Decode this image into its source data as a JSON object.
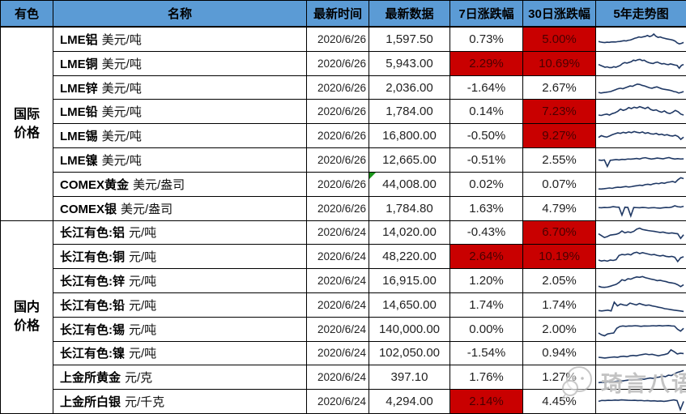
{
  "header": {
    "group": "有色",
    "columns": [
      "名称",
      "最新时间",
      "最新数据",
      "7日涨跌幅",
      "30日涨跌幅",
      "5年走势图"
    ]
  },
  "colors": {
    "header_bg": "#5B9BD5",
    "highlight_bg": "#C90000",
    "highlight_text": "#4a0000",
    "sparkline": "#1F3864",
    "border": "#000000",
    "error_marker_green": "#1a961a",
    "watermark_gray": "#b9b9b9"
  },
  "watermark": {
    "text": "琦言八语",
    "icon": "wechat-face-icon"
  },
  "groups": [
    {
      "label": "国际价格",
      "rows": [
        {
          "name": "LME铝",
          "unit": "美元/吨",
          "date": "2020/6/26",
          "value": "1,597.50",
          "pct7": "0.73%",
          "pct7_hl": false,
          "pct30": "5.00%",
          "pct30_hl": true,
          "error": false,
          "spark": [
            38,
            35,
            33,
            32,
            34,
            33,
            35,
            36,
            35,
            37,
            38,
            40,
            42,
            41,
            44,
            46,
            50,
            55,
            58,
            62,
            60,
            63,
            65,
            70,
            64,
            68,
            78,
            66,
            60,
            62,
            58,
            55,
            52,
            50,
            48,
            45,
            40,
            30,
            25,
            28,
            33
          ]
        },
        {
          "name": "LME铜",
          "unit": "美元/吨",
          "date": "2020/6/26",
          "value": "5,943.00",
          "pct7": "2.29%",
          "pct7_hl": true,
          "pct30": "10.69%",
          "pct30_hl": true,
          "error": false,
          "spark": [
            45,
            40,
            35,
            30,
            32,
            28,
            28,
            33,
            30,
            35,
            40,
            50,
            55,
            52,
            56,
            60,
            68,
            65,
            70,
            72,
            66,
            68,
            60,
            55,
            52,
            50,
            55,
            58,
            52,
            48,
            50,
            46,
            44,
            48,
            45,
            42,
            40,
            25,
            40,
            45
          ]
        },
        {
          "name": "LME锌",
          "unit": "美元/吨",
          "date": "2020/6/26",
          "value": "2,036.00",
          "pct7": "-1.64%",
          "pct7_hl": false,
          "pct30": "2.67%",
          "pct30_hl": false,
          "error": false,
          "spark": [
            25,
            22,
            24,
            26,
            28,
            30,
            35,
            40,
            45,
            48,
            45,
            50,
            55,
            60,
            58,
            65,
            70,
            68,
            63,
            60,
            55,
            50,
            48,
            52,
            55,
            50,
            45,
            42,
            40,
            38,
            35,
            30,
            28,
            22,
            25,
            30
          ]
        },
        {
          "name": "LME铅",
          "unit": "美元/吨",
          "date": "2020/6/26",
          "value": "1,784.00",
          "pct7": "0.14%",
          "pct7_hl": false,
          "pct30": "7.23%",
          "pct30_hl": true,
          "error": false,
          "spark": [
            30,
            28,
            32,
            35,
            30,
            38,
            42,
            50,
            62,
            55,
            60,
            70,
            65,
            72,
            68,
            75,
            70,
            65,
            72,
            60,
            55,
            58,
            50,
            45,
            52,
            42,
            38,
            45,
            55,
            48,
            35,
            30
          ]
        },
        {
          "name": "LME锡",
          "unit": "美元/吨",
          "date": "2020/6/26",
          "value": "16,800.00",
          "pct7": "-0.50%",
          "pct7_hl": false,
          "pct30": "9.27%",
          "pct30_hl": true,
          "error": false,
          "spark": [
            40,
            50,
            45,
            42,
            48,
            55,
            60,
            65,
            62,
            68,
            64,
            70,
            66,
            72,
            68,
            65,
            70,
            62,
            66,
            60,
            58,
            62,
            55,
            58,
            52,
            55,
            50,
            48,
            52,
            45,
            30,
            42
          ]
        },
        {
          "name": "LME镍",
          "unit": "美元/吨",
          "date": "2020/6/26",
          "value": "12,665.00",
          "pct7": "-0.51%",
          "pct7_hl": false,
          "pct30": "2.55%",
          "pct30_hl": false,
          "error": false,
          "spark": [
            50,
            48,
            50,
            15,
            48,
            50,
            52,
            50,
            53,
            52,
            55,
            54,
            56,
            58,
            55,
            60,
            62,
            58,
            55,
            57,
            60,
            58,
            56,
            60,
            63,
            58,
            55,
            57,
            55,
            56
          ]
        },
        {
          "name": "COMEX黄金",
          "unit": "美元/盎司",
          "date": "2020/6/26",
          "value": "44,008.00",
          "pct7": "0.02%",
          "pct7_hl": false,
          "pct30": "0.07%",
          "pct30_hl": false,
          "error": true,
          "spark": [
            25,
            24,
            26,
            28,
            30,
            28,
            32,
            34,
            33,
            36,
            38,
            35,
            37,
            40,
            42,
            45,
            43,
            48,
            50,
            47,
            52,
            55,
            53,
            58,
            55,
            60,
            62,
            65,
            60,
            75,
            85,
            80
          ]
        },
        {
          "name": "COMEX银",
          "unit": "美元/盎司",
          "date": "2020/6/26",
          "value": "1,784.80",
          "pct7": "1.63%",
          "pct7_hl": false,
          "pct30": "4.79%",
          "pct30_hl": false,
          "error": false,
          "spark": [
            55,
            54,
            56,
            55,
            57,
            60,
            58,
            57,
            15,
            57,
            56,
            10,
            56,
            55,
            54,
            56,
            55,
            53,
            54,
            55,
            53,
            52,
            54,
            56,
            55,
            58,
            65,
            60,
            58,
            62
          ]
        }
      ]
    },
    {
      "label": "国内价格",
      "rows": [
        {
          "name": "长江有色:铝",
          "unit": "元/吨",
          "date": "2020/6/24",
          "value": "14,020.00",
          "pct7": "-0.43%",
          "pct7_hl": false,
          "pct30": "6.70%",
          "pct30_hl": true,
          "error": false,
          "spark": [
            45,
            35,
            25,
            30,
            38,
            40,
            42,
            48,
            60,
            50,
            55,
            52,
            58,
            70,
            75,
            68,
            65,
            62,
            60,
            58,
            55,
            52,
            54,
            50,
            48,
            50,
            47,
            45,
            20,
            40
          ]
        },
        {
          "name": "长江有色:铜",
          "unit": "元/吨",
          "date": "2020/6/24",
          "value": "48,220.00",
          "pct7": "2.64%",
          "pct7_hl": true,
          "pct30": "10.19%",
          "pct30_hl": true,
          "error": false,
          "spark": [
            30,
            25,
            28,
            24,
            30,
            28,
            32,
            55,
            60,
            58,
            62,
            58,
            68,
            72,
            65,
            70,
            66,
            62,
            58,
            60,
            55,
            52,
            55,
            50,
            48,
            50,
            45,
            22,
            42,
            48
          ]
        },
        {
          "name": "长江有色:锌",
          "unit": "元/吨",
          "date": "2020/6/24",
          "value": "16,915.00",
          "pct7": "1.20%",
          "pct7_hl": false,
          "pct30": "2.05%",
          "pct30_hl": false,
          "error": false,
          "spark": [
            20,
            15,
            14,
            16,
            20,
            25,
            30,
            40,
            55,
            50,
            60,
            58,
            65,
            70,
            68,
            72,
            66,
            62,
            58,
            55,
            50,
            52,
            48,
            45,
            40,
            38,
            35,
            28,
            18,
            28
          ]
        },
        {
          "name": "长江有色:铅",
          "unit": "元/吨",
          "date": "2020/6/24",
          "value": "14,650.00",
          "pct7": "1.74%",
          "pct7_hl": false,
          "pct30": "1.74%",
          "pct30_hl": false,
          "error": false,
          "spark": [
            20,
            18,
            20,
            22,
            18,
            65,
            45,
            55,
            50,
            48,
            60,
            55,
            50,
            58,
            52,
            48,
            50,
            45,
            42,
            38,
            35,
            30,
            28,
            25,
            22,
            20,
            18,
            15
          ]
        },
        {
          "name": "长江有色:锡",
          "unit": "元/吨",
          "date": "2020/6/24",
          "value": "140,000.00",
          "pct7": "0.00%",
          "pct7_hl": false,
          "pct30": "2.00%",
          "pct30_hl": false,
          "error": false,
          "spark": [
            30,
            20,
            15,
            25,
            28,
            30,
            55,
            65,
            68,
            66,
            68,
            67,
            69,
            68,
            66,
            68,
            67,
            68,
            69,
            68,
            70,
            68,
            69,
            70,
            68,
            67,
            50,
            40,
            55
          ]
        },
        {
          "name": "长江有色:镍",
          "unit": "元/吨",
          "date": "2020/6/24",
          "value": "102,050.00",
          "pct7": "-1.54%",
          "pct7_hl": false,
          "pct30": "0.94%",
          "pct30_hl": false,
          "error": false,
          "spark": [
            30,
            28,
            26,
            28,
            30,
            32,
            30,
            34,
            36,
            33,
            38,
            40,
            38,
            42,
            45,
            48,
            44,
            46,
            42,
            38,
            42,
            45,
            50,
            70,
            60,
            48,
            52,
            50
          ]
        },
        {
          "name": "上金所黄金",
          "unit": "元/克",
          "date": "2020/6/24",
          "value": "397.10",
          "pct7": "1.76%",
          "pct7_hl": false,
          "pct30": "1.27%",
          "pct30_hl": false,
          "error": false,
          "spark": [
            20,
            22,
            21,
            24,
            26,
            25,
            28,
            30,
            29,
            32,
            34,
            33,
            36,
            38,
            40,
            38,
            42,
            45,
            43,
            48,
            50,
            55,
            52,
            60,
            58,
            68,
            75,
            80,
            85
          ]
        },
        {
          "name": "上金所白银",
          "unit": "元/千克",
          "date": "2020/6/24",
          "value": "4,294.00",
          "pct7": "2.14%",
          "pct7_hl": true,
          "pct30": "4.45%",
          "pct30_hl": false,
          "error": false,
          "spark": [
            50,
            55,
            54,
            56,
            55,
            57,
            56,
            58,
            57,
            56,
            55,
            56,
            54,
            55,
            53,
            54,
            52,
            53,
            51,
            52,
            50,
            52,
            55,
            58,
            54,
            5,
            50
          ]
        }
      ]
    }
  ]
}
